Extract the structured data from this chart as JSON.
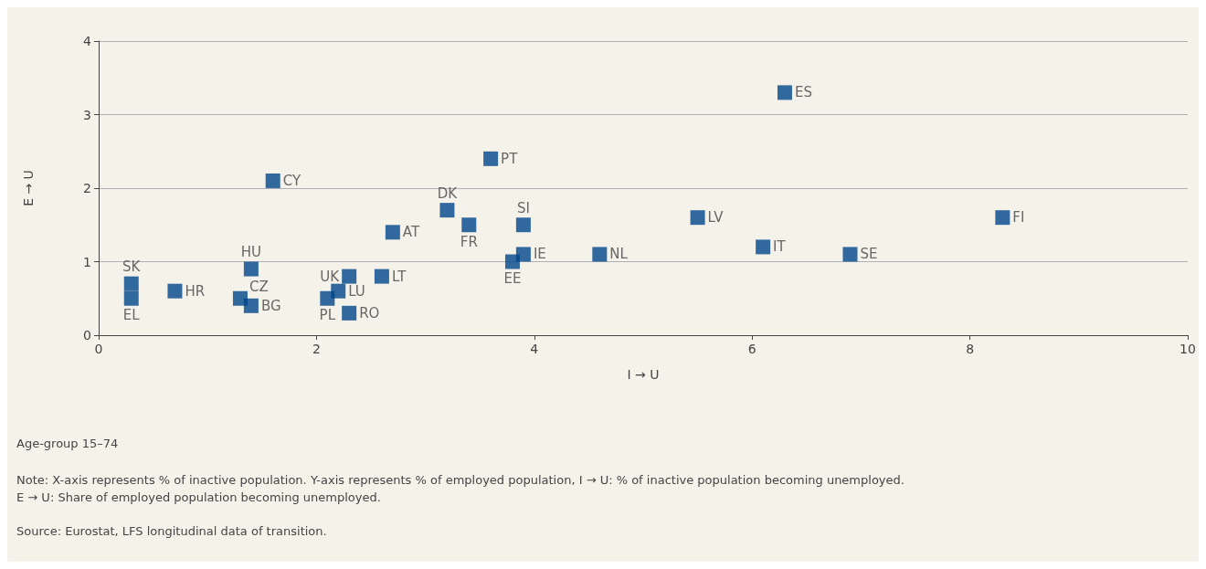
{
  "chart_data": {
    "type": "scatter",
    "xlabel": "I → U",
    "ylabel": "E → U",
    "x": [
      6.3,
      3.6,
      1.6,
      3.2,
      3.4,
      3.9,
      5.5,
      8.3,
      2.7,
      6.1,
      3.9,
      4.6,
      6.9,
      3.8,
      1.4,
      2.3,
      2.6,
      0.3,
      0.3,
      0.7,
      2.2,
      1.3,
      2.1,
      1.4,
      2.3
    ],
    "series": [
      {
        "color": "#00468b",
        "values": [
          3.3,
          2.4,
          2.1,
          1.7,
          1.5,
          1.5,
          1.6,
          1.6,
          1.4,
          1.2,
          1.1,
          1.1,
          1.1,
          1.0,
          0.9,
          0.8,
          0.8,
          0.7,
          0.5,
          0.6,
          0.6,
          0.5,
          0.5,
          0.4,
          0.3
        ]
      }
    ],
    "annotations": [
      {
        "text": "ES",
        "x": 6.3,
        "y": 3.3
      },
      {
        "text": "PT",
        "x": 3.6,
        "y": 2.4
      },
      {
        "text": "CY",
        "x": 1.6,
        "y": 2.1
      },
      {
        "text": "DK",
        "x": 3.2,
        "y": 1.7
      },
      {
        "text": "FR",
        "x": 3.4,
        "y": 1.5
      },
      {
        "text": "SI",
        "x": 3.9,
        "y": 1.5
      },
      {
        "text": "LV",
        "x": 5.5,
        "y": 1.6
      },
      {
        "text": "FI",
        "x": 8.3,
        "y": 1.6
      },
      {
        "text": "AT",
        "x": 2.7,
        "y": 1.4
      },
      {
        "text": "IT",
        "x": 6.1,
        "y": 1.2
      },
      {
        "text": "IE",
        "x": 3.9,
        "y": 1.1
      },
      {
        "text": "NL",
        "x": 4.6,
        "y": 1.1
      },
      {
        "text": "SE",
        "x": 6.9,
        "y": 1.1
      },
      {
        "text": "EE",
        "x": 3.8,
        "y": 1.0
      },
      {
        "text": "HU",
        "x": 1.4,
        "y": 0.9
      },
      {
        "text": "UK",
        "x": 2.3,
        "y": 0.8
      },
      {
        "text": "LT",
        "x": 2.6,
        "y": 0.8
      },
      {
        "text": "SK",
        "x": 0.3,
        "y": 0.7
      },
      {
        "text": "EL",
        "x": 0.3,
        "y": 0.5
      },
      {
        "text": "HR",
        "x": 0.7,
        "y": 0.6
      },
      {
        "text": "LU",
        "x": 2.2,
        "y": 0.6
      },
      {
        "text": "CZ",
        "x": 1.3,
        "y": 0.5
      },
      {
        "text": "PL",
        "x": 2.1,
        "y": 0.5
      },
      {
        "text": "BG",
        "x": 1.4,
        "y": 0.4
      },
      {
        "text": "RO",
        "x": 2.3,
        "y": 0.3
      },
      "Age-group 15–74",
      "Note: X-axis represents % of inactive population. Y-axis represents % of employed population, I → U: % of inactive population becoming unemployed.\nE → U: Share of employed population becoming unemployed.",
      "Source: Eurostat, LFS longitudinal data of transition."
    ],
    "xlim": [
      0,
      10
    ],
    "xticks": [
      0,
      2,
      4,
      6,
      8,
      10
    ],
    "ylim": [
      0,
      4
    ],
    "yticks": [
      0,
      1,
      2,
      3,
      4
    ],
    "grid": "y",
    "marker": "square"
  }
}
